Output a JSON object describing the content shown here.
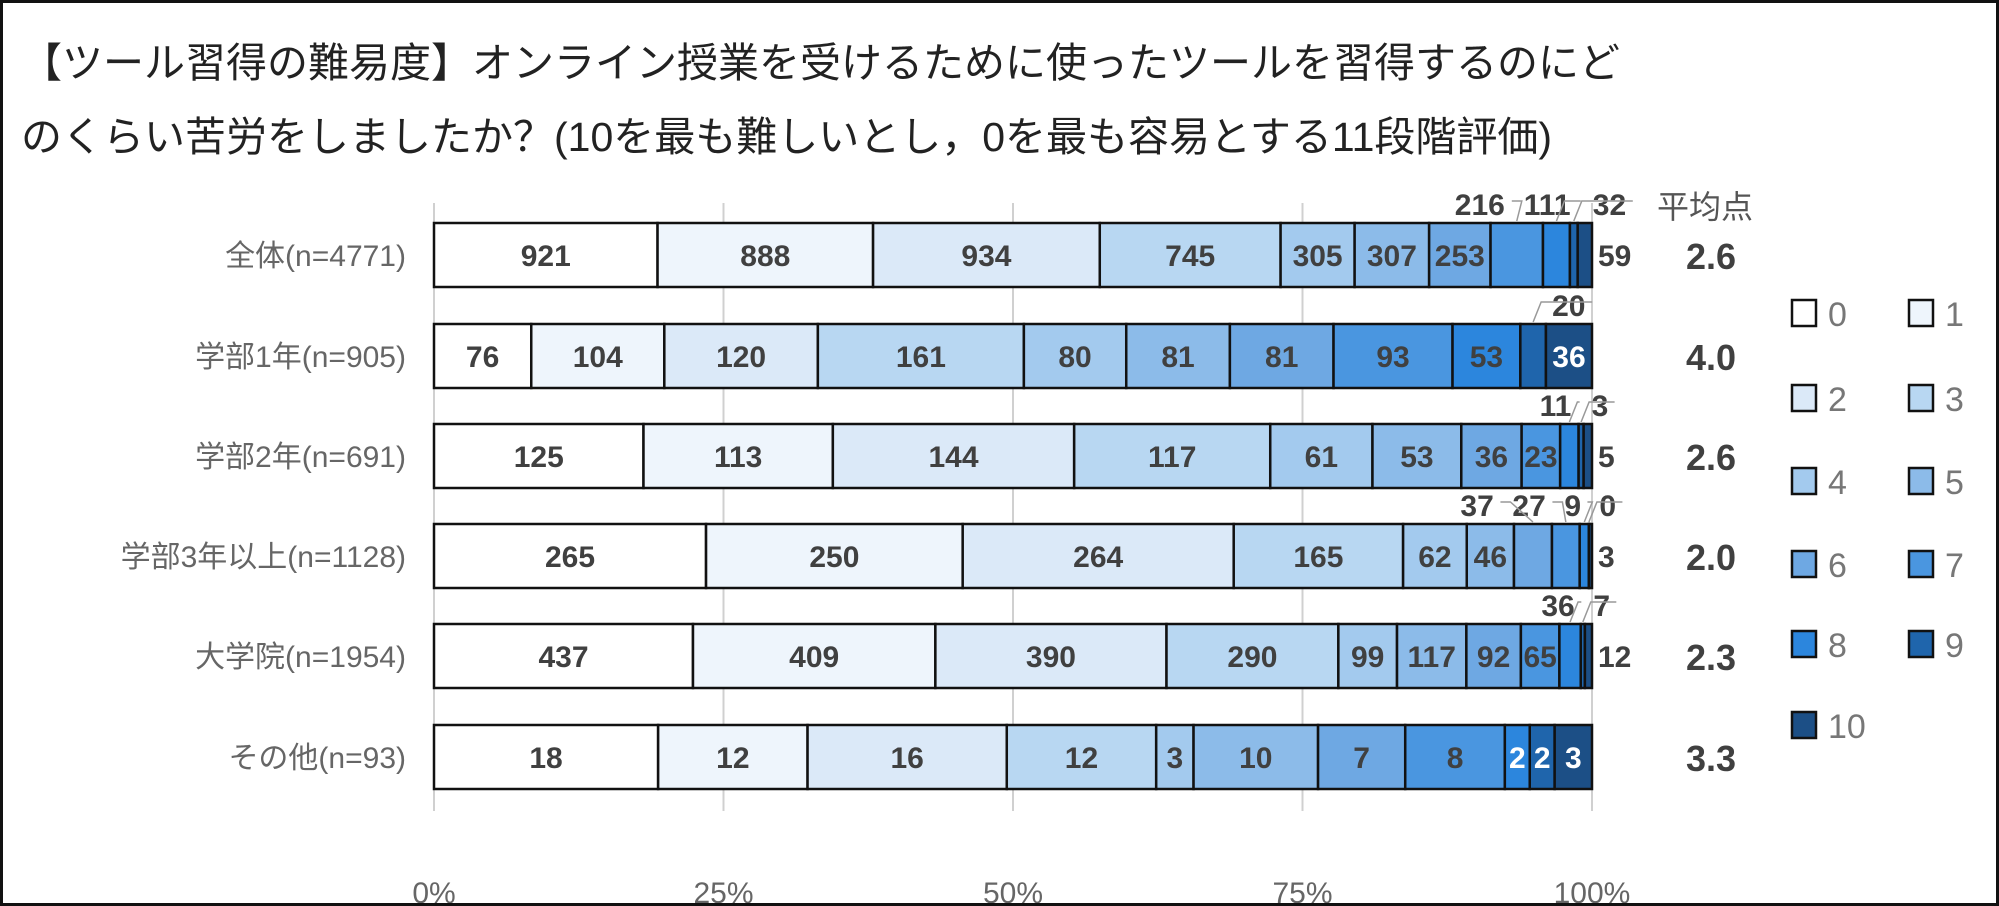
{
  "chart_data": {
    "type": "bar",
    "orientation": "horizontal",
    "stacked": "100%",
    "title_lines": [
      "【ツール習得の難易度】オンライン授業を受けるために使ったツールを習得するのにど",
      "のくらい苦労をしましたか？(10を最も難しいとし，0を最も容易とする11段階評価)"
    ],
    "categories": [
      "全体(n=4771)",
      "学部1年(n=905)",
      "学部2年(n=691)",
      "学部3年以上(n=1128)",
      "大学院(n=1954)",
      "その他(n=93)"
    ],
    "series": [
      {
        "name": "0",
        "color": "#ffffff",
        "values": [
          921,
          76,
          125,
          265,
          437,
          18
        ]
      },
      {
        "name": "1",
        "color": "#eef5fc",
        "values": [
          888,
          104,
          113,
          250,
          409,
          12
        ]
      },
      {
        "name": "2",
        "color": "#dbe9f8",
        "values": [
          934,
          120,
          144,
          264,
          390,
          16
        ]
      },
      {
        "name": "3",
        "color": "#b8d7f2",
        "values": [
          745,
          161,
          117,
          165,
          290,
          12
        ]
      },
      {
        "name": "4",
        "color": "#a3caee",
        "values": [
          305,
          80,
          61,
          62,
          99,
          3
        ]
      },
      {
        "name": "5",
        "color": "#8cbbe9",
        "values": [
          307,
          81,
          53,
          46,
          117,
          10
        ]
      },
      {
        "name": "6",
        "color": "#6ea8e3",
        "values": [
          253,
          81,
          36,
          37,
          92,
          7
        ]
      },
      {
        "name": "7",
        "color": "#4a96e0",
        "values": [
          216,
          93,
          23,
          27,
          65,
          8
        ]
      },
      {
        "name": "8",
        "color": "#2c86dd",
        "values": [
          111,
          53,
          11,
          9,
          36,
          2
        ]
      },
      {
        "name": "9",
        "color": "#1f65ac",
        "values": [
          32,
          20,
          3,
          0,
          7,
          2
        ]
      },
      {
        "name": "10",
        "color": "#1c4f86",
        "values": [
          59,
          36,
          5,
          3,
          12,
          3
        ]
      }
    ],
    "average_header": "平均点",
    "averages": [
      "2.6",
      "4.0",
      "2.6",
      "2.0",
      "2.3",
      "3.3"
    ],
    "x_ticks": [
      "0%",
      "25%",
      "50%",
      "75%",
      "100%"
    ],
    "xlim": [
      0,
      100
    ],
    "grid": "vertical",
    "legend_position": "right"
  }
}
